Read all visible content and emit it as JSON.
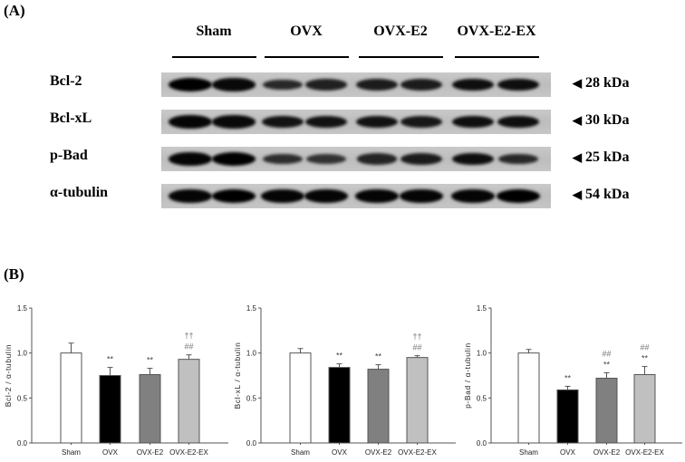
{
  "panel_a": {
    "label": "(A)",
    "groups": [
      "Sham",
      "OVX",
      "OVX-E2",
      "OVX-E2-EX"
    ],
    "rows": [
      {
        "protein": "Bcl-2",
        "kda": "28 kDa",
        "band_intensity": [
          1.0,
          0.9,
          0.55,
          0.65,
          0.7,
          0.7,
          0.85,
          0.85
        ]
      },
      {
        "protein": "Bcl-xL",
        "kda": "30 kDa",
        "band_intensity": [
          0.95,
          0.9,
          0.8,
          0.8,
          0.8,
          0.75,
          0.85,
          0.85
        ]
      },
      {
        "protein": "p-Bad",
        "kda": "25 kDa",
        "band_intensity": [
          0.95,
          1.0,
          0.5,
          0.45,
          0.6,
          0.7,
          0.85,
          0.55
        ]
      },
      {
        "protein": "α-tubulin",
        "kda": "54 kDa",
        "band_intensity": [
          0.95,
          1.0,
          0.95,
          0.95,
          0.95,
          0.95,
          0.95,
          1.0
        ]
      }
    ],
    "arrow_glyph": "◀"
  },
  "panel_b": {
    "label": "(B)"
  },
  "chart_data": [
    {
      "type": "bar",
      "title": "",
      "categories": [
        "Sham",
        "OVX",
        "OVX-E2",
        "OVX-E2-EX"
      ],
      "values": [
        1.0,
        0.75,
        0.76,
        0.93
      ],
      "errors": [
        0.11,
        0.09,
        0.07,
        0.05
      ],
      "bar_colors": [
        "#ffffff",
        "#000000",
        "#808080",
        "#c0c0c0"
      ],
      "annotations": [
        [],
        [
          "**"
        ],
        [
          "**"
        ],
        [
          "##",
          "††"
        ]
      ],
      "xlabel": "",
      "ylabel": "Bcl-2 / α-tubulin",
      "ylim": [
        0,
        1.5
      ],
      "yticks": [
        "0.0",
        "0.5",
        "1.0",
        "1.5"
      ],
      "grid": false,
      "legend": "none"
    },
    {
      "type": "bar",
      "title": "",
      "categories": [
        "Sham",
        "OVX",
        "OVX-E2",
        "OVX-E2-EX"
      ],
      "values": [
        1.0,
        0.84,
        0.82,
        0.95
      ],
      "errors": [
        0.05,
        0.04,
        0.05,
        0.02
      ],
      "bar_colors": [
        "#ffffff",
        "#000000",
        "#808080",
        "#c0c0c0"
      ],
      "annotations": [
        [],
        [
          "**"
        ],
        [
          "**"
        ],
        [
          "##",
          "††"
        ]
      ],
      "xlabel": "",
      "ylabel": "Bcl-xL / α-tubulin",
      "ylim": [
        0,
        1.5
      ],
      "yticks": [
        "0.0",
        "0.5",
        "1.0",
        "1.5"
      ],
      "grid": false,
      "legend": "none"
    },
    {
      "type": "bar",
      "title": "",
      "categories": [
        "Sham",
        "OVX",
        "OVX-E2",
        "OVX-E2-EX"
      ],
      "values": [
        1.0,
        0.59,
        0.72,
        0.76
      ],
      "errors": [
        0.04,
        0.04,
        0.06,
        0.09
      ],
      "bar_colors": [
        "#ffffff",
        "#000000",
        "#808080",
        "#c0c0c0"
      ],
      "annotations": [
        [],
        [
          "**"
        ],
        [
          "**",
          "##"
        ],
        [
          "**",
          "##"
        ]
      ],
      "xlabel": "",
      "ylabel": "p-Bad / α-tubulin",
      "ylim": [
        0,
        1.5
      ],
      "yticks": [
        "0.0",
        "0.5",
        "1.0",
        "1.5"
      ],
      "grid": false,
      "legend": "none"
    }
  ]
}
